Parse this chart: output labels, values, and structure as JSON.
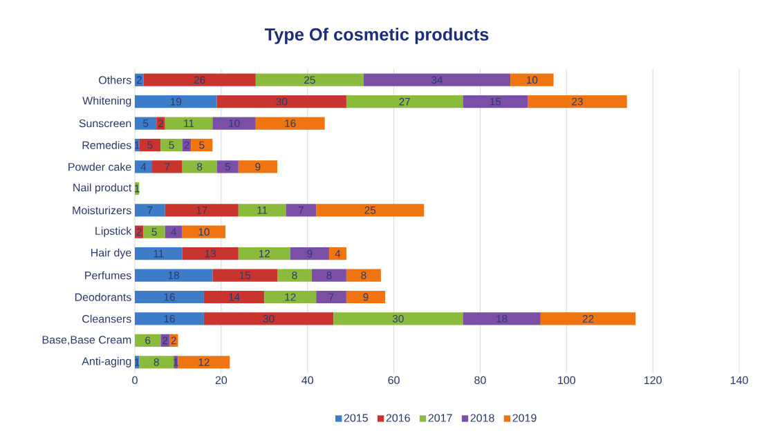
{
  "chart_data": {
    "type": "bar",
    "orientation": "horizontal",
    "stacked": true,
    "title": "Type Of cosmetic products",
    "categories": [
      "Others",
      "Whitening",
      "Sunscreen",
      "Remedies",
      "Powder cake",
      "Nail product",
      "Moisturizers",
      "Lipstick",
      "Hair dye",
      "Perfumes",
      "Deodorants",
      "Cleansers",
      "Base,Base Cream",
      "Anti-aging"
    ],
    "series": [
      {
        "name": "2015",
        "color": "#3d7cc9",
        "values": [
          2,
          19,
          5,
          1,
          4,
          null,
          7,
          null,
          11,
          18,
          16,
          16,
          null,
          1
        ]
      },
      {
        "name": "2016",
        "color": "#c8352e",
        "values": [
          26,
          30,
          2,
          5,
          7,
          null,
          17,
          2,
          13,
          15,
          14,
          30,
          null,
          null
        ]
      },
      {
        "name": "2017",
        "color": "#8bbb3c",
        "values": [
          25,
          27,
          11,
          5,
          8,
          1,
          11,
          5,
          12,
          8,
          12,
          30,
          6,
          8
        ]
      },
      {
        "name": "2018",
        "color": "#7b4fa6",
        "values": [
          34,
          15,
          10,
          2,
          5,
          null,
          7,
          4,
          9,
          8,
          7,
          18,
          2,
          1
        ]
      },
      {
        "name": "2019",
        "color": "#ee7511",
        "values": [
          10,
          23,
          16,
          5,
          9,
          null,
          25,
          10,
          4,
          8,
          9,
          22,
          2,
          12
        ]
      }
    ],
    "xlim": [
      0,
      140
    ],
    "xticks": [
      0,
      20,
      40,
      60,
      80,
      100,
      120,
      140
    ],
    "grid": "x",
    "legend": "bottom",
    "data_labels": true
  }
}
